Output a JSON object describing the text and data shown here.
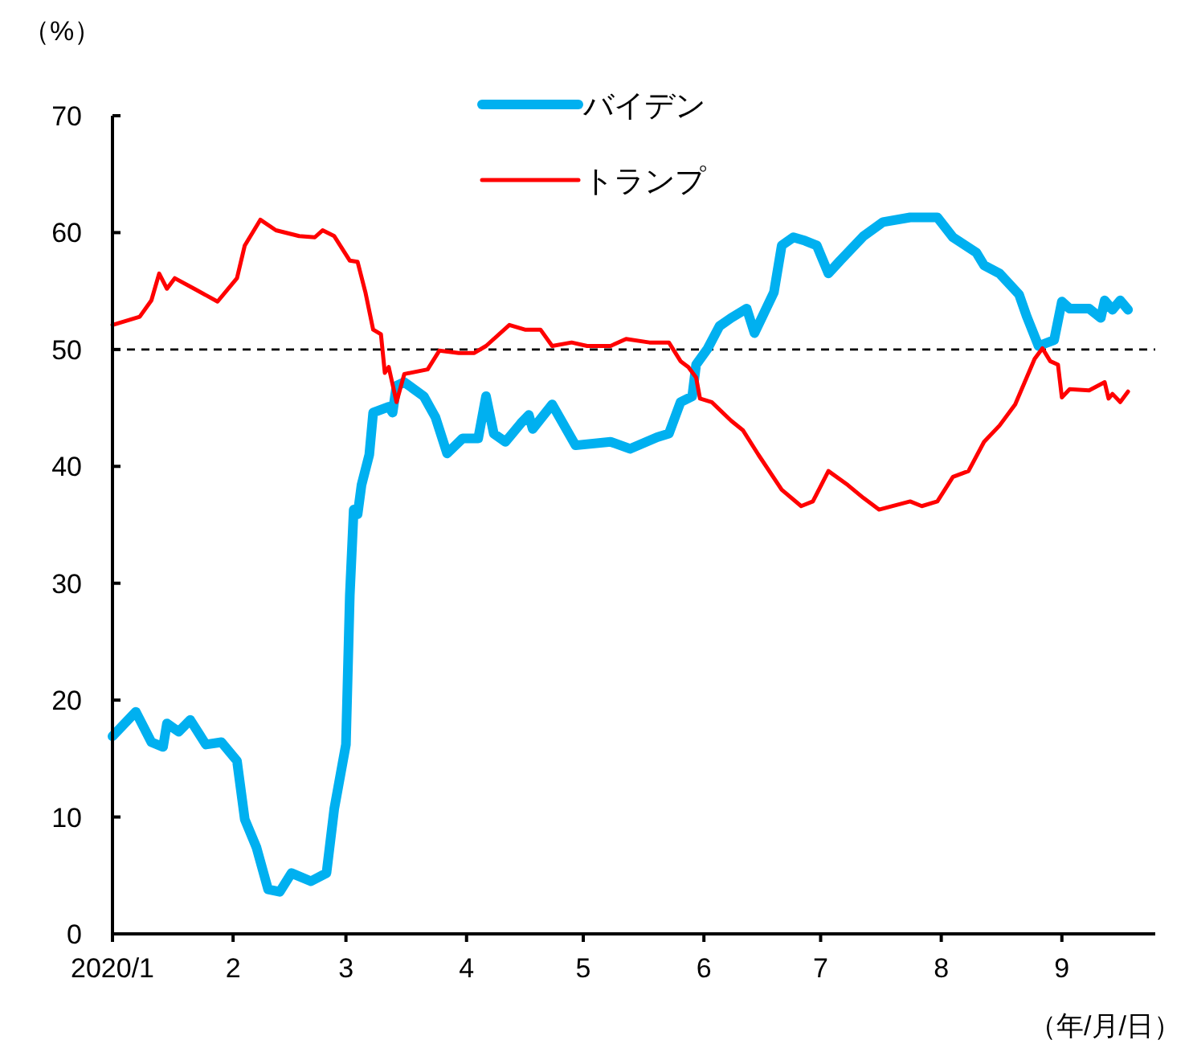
{
  "chart_data": {
    "type": "line",
    "ylabel": "（%）",
    "xlabel": "（年/月/日）",
    "legend": "top",
    "grid": false,
    "xlim": [
      "2020-01-01",
      "2020-09-25"
    ],
    "xticks": [
      {
        "value": "2020-01-01",
        "label": "2020/1"
      },
      {
        "value": "2020-02-01",
        "label": "2"
      },
      {
        "value": "2020-03-01",
        "label": "3"
      },
      {
        "value": "2020-04-01",
        "label": "4"
      },
      {
        "value": "2020-05-01",
        "label": "5"
      },
      {
        "value": "2020-06-01",
        "label": "6"
      },
      {
        "value": "2020-07-01",
        "label": "7"
      },
      {
        "value": "2020-08-01",
        "label": "8"
      },
      {
        "value": "2020-09-01",
        "label": "9"
      }
    ],
    "ylim": [
      0,
      70
    ],
    "yticks": [
      0,
      10,
      20,
      30,
      40,
      50,
      60,
      70
    ],
    "ref_lines": [
      {
        "axis": "y",
        "value": 50,
        "color": "#000000",
        "line_style": "dashed"
      }
    ],
    "series": [
      {
        "name": "バイデン",
        "color": "#00b0f0",
        "x": [
          "2020-01-01",
          "2020-01-07",
          "2020-01-11",
          "2020-01-14",
          "2020-01-15",
          "2020-01-18",
          "2020-01-21",
          "2020-01-25",
          "2020-01-29",
          "2020-02-02",
          "2020-02-04",
          "2020-02-07",
          "2020-02-10",
          "2020-02-13",
          "2020-02-16",
          "2020-02-21",
          "2020-02-25",
          "2020-02-27",
          "2020-03-01",
          "2020-03-02",
          "2020-03-03",
          "2020-03-04",
          "2020-03-05",
          "2020-03-07",
          "2020-03-08",
          "2020-03-12",
          "2020-03-13",
          "2020-03-14",
          "2020-03-16",
          "2020-03-21",
          "2020-03-24",
          "2020-03-27",
          "2020-03-31",
          "2020-04-04",
          "2020-04-06",
          "2020-04-08",
          "2020-04-11",
          "2020-04-15",
          "2020-04-17",
          "2020-04-18",
          "2020-04-23",
          "2020-04-29",
          "2020-05-08",
          "2020-05-13",
          "2020-05-20",
          "2020-05-23",
          "2020-05-26",
          "2020-05-29",
          "2020-05-30",
          "2020-06-02",
          "2020-06-05",
          "2020-06-08",
          "2020-06-12",
          "2020-06-14",
          "2020-06-16",
          "2020-06-19",
          "2020-06-21",
          "2020-06-24",
          "2020-06-27",
          "2020-06-30",
          "2020-07-03",
          "2020-07-06",
          "2020-07-12",
          "2020-07-17",
          "2020-07-24",
          "2020-07-31",
          "2020-08-04",
          "2020-08-10",
          "2020-08-12",
          "2020-08-16",
          "2020-08-21",
          "2020-08-23",
          "2020-08-26",
          "2020-08-30",
          "2020-09-01",
          "2020-09-03",
          "2020-09-08",
          "2020-09-11",
          "2020-09-12",
          "2020-09-14",
          "2020-09-16",
          "2020-09-18"
        ],
        "values": [
          16.9,
          19.0,
          16.4,
          16.0,
          18.0,
          17.3,
          18.3,
          16.2,
          16.4,
          14.8,
          9.8,
          7.4,
          3.8,
          3.6,
          5.2,
          4.5,
          5.2,
          10.7,
          16.2,
          29.0,
          36.3,
          35.9,
          38.4,
          41.0,
          44.6,
          45.1,
          44.6,
          46.9,
          47.2,
          46.0,
          44.2,
          41.1,
          42.4,
          42.4,
          46.0,
          42.8,
          42.1,
          43.7,
          44.4,
          43.2,
          45.3,
          41.8,
          42.1,
          41.5,
          42.5,
          42.8,
          45.5,
          46.0,
          48.7,
          50.1,
          52.0,
          52.7,
          53.5,
          51.4,
          52.8,
          54.9,
          58.9,
          59.6,
          59.3,
          58.9,
          56.5,
          57.6,
          59.7,
          60.9,
          61.3,
          61.3,
          59.6,
          58.3,
          57.2,
          56.5,
          54.7,
          52.8,
          50.3,
          50.8,
          54.1,
          53.5,
          53.5,
          52.7,
          54.2,
          53.4,
          54.2,
          53.4
        ]
      },
      {
        "name": "トランプ",
        "color": "#ff0000",
        "x": [
          "2020-01-01",
          "2020-01-08",
          "2020-01-11",
          "2020-01-13",
          "2020-01-15",
          "2020-01-17",
          "2020-01-22",
          "2020-01-28",
          "2020-02-02",
          "2020-02-04",
          "2020-02-08",
          "2020-02-12",
          "2020-02-18",
          "2020-02-22",
          "2020-02-24",
          "2020-02-27",
          "2020-03-02",
          "2020-03-04",
          "2020-03-06",
          "2020-03-08",
          "2020-03-10",
          "2020-03-11",
          "2020-03-12",
          "2020-03-14",
          "2020-03-16",
          "2020-03-22",
          "2020-03-25",
          "2020-03-30",
          "2020-04-03",
          "2020-04-06",
          "2020-04-12",
          "2020-04-16",
          "2020-04-20",
          "2020-04-23",
          "2020-04-28",
          "2020-05-02",
          "2020-05-08",
          "2020-05-12",
          "2020-05-18",
          "2020-05-23",
          "2020-05-26",
          "2020-05-28",
          "2020-05-30",
          "2020-05-31",
          "2020-06-03",
          "2020-06-08",
          "2020-06-11",
          "2020-06-15",
          "2020-06-21",
          "2020-06-26",
          "2020-06-29",
          "2020-07-03",
          "2020-07-08",
          "2020-07-12",
          "2020-07-16",
          "2020-07-24",
          "2020-07-27",
          "2020-07-31",
          "2020-08-04",
          "2020-08-08",
          "2020-08-12",
          "2020-08-16",
          "2020-08-20",
          "2020-08-25",
          "2020-08-27",
          "2020-08-29",
          "2020-08-31",
          "2020-09-01",
          "2020-09-03",
          "2020-09-08",
          "2020-09-12",
          "2020-09-13",
          "2020-09-14",
          "2020-09-16",
          "2020-09-18"
        ],
        "values": [
          52.1,
          52.8,
          54.2,
          56.5,
          55.2,
          56.1,
          55.2,
          54.1,
          56.1,
          58.9,
          61.1,
          60.2,
          59.7,
          59.6,
          60.2,
          59.7,
          57.6,
          57.5,
          54.9,
          51.7,
          51.3,
          48.0,
          48.5,
          45.5,
          47.9,
          48.3,
          49.9,
          49.7,
          49.7,
          50.3,
          52.1,
          51.7,
          51.7,
          50.3,
          50.6,
          50.3,
          50.3,
          50.9,
          50.6,
          50.6,
          49.0,
          48.5,
          47.6,
          45.8,
          45.5,
          43.9,
          43.1,
          41.0,
          38.0,
          36.6,
          37.0,
          39.6,
          38.4,
          37.3,
          36.3,
          37.0,
          36.6,
          37.0,
          39.1,
          39.6,
          42.1,
          43.5,
          45.3,
          49.2,
          50.1,
          49.0,
          48.7,
          45.9,
          46.6,
          46.5,
          47.2,
          45.8,
          46.2,
          45.5,
          46.4
        ]
      }
    ]
  }
}
